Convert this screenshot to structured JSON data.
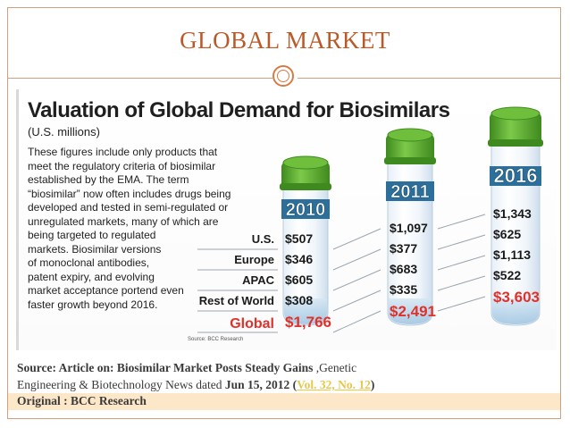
{
  "slide": {
    "title": "GLOBAL MARKET"
  },
  "figure": {
    "title": "Valuation of Global Demand for Biosimilars",
    "units": "(U.S. millions)",
    "description": [
      "These figures include only products that",
      "meet the regulatory criteria of biosimilar",
      "established by the EMA. The term",
      "“biosimilar” now often includes drugs being",
      "developed and tested in semi-regulated or",
      "unregulated markets, many of which are",
      "being targeted to regulated",
      "markets. Biosimilar versions",
      "of monoclonal antibodies,",
      "patent expiry, and evolving",
      "market acceptance portend even",
      "faster growth beyond 2016."
    ],
    "source": "Source: BCC Research"
  },
  "chart_data": {
    "type": "table",
    "title": "Valuation of Global Demand for Biosimilars",
    "units": "(U.S. millions)",
    "categories": [
      "2010",
      "2011",
      "2016"
    ],
    "rows": [
      "U.S.",
      "Europe",
      "APAC",
      "Rest of World",
      "Global"
    ],
    "series": [
      {
        "name": "U.S.",
        "values": [
          507,
          1097,
          1343
        ],
        "labels": [
          "$507",
          "$1,097",
          "$1,343"
        ]
      },
      {
        "name": "Europe",
        "values": [
          346,
          377,
          625
        ],
        "labels": [
          "$346",
          "$377",
          "$625"
        ]
      },
      {
        "name": "APAC",
        "values": [
          605,
          683,
          1113
        ],
        "labels": [
          "$605",
          "$683",
          "$1,113"
        ]
      },
      {
        "name": "Rest of World",
        "values": [
          308,
          335,
          522
        ],
        "labels": [
          "$308",
          "$335",
          "$522"
        ]
      },
      {
        "name": "Global",
        "values": [
          1766,
          2491,
          3603
        ],
        "labels": [
          "$1,766",
          "$2,491",
          "$3,603"
        ]
      }
    ],
    "colors": {
      "cap": "#5fb02f",
      "cap_dark": "#3f8a1e",
      "label_band": "#2b6f9a",
      "global_text": "#e0312a"
    }
  },
  "footer": {
    "line1_prefix": "Source:  Article on: ",
    "line1_bold": "Biosimilar Market Posts Steady Gains",
    "line1_suffix": " ,Genetic",
    "line2_prefix": "Engineering & Biotechnology News dated ",
    "line2_date": "Jun 15, 2012",
    "line2_open": " (",
    "line2_vol": "Vol. 32, No. 12",
    "line2_close": ")",
    "line3": "Original  : BCC Research"
  }
}
